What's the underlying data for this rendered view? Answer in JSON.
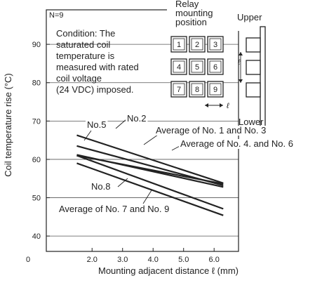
{
  "chart_data": {
    "type": "line",
    "xlabel": "Mounting adjacent distance ℓ (mm)",
    "ylabel": "Coil temperature rise (°C)",
    "xlim": [
      0.5,
      6.8
    ],
    "ylim": [
      36,
      99
    ],
    "xticks": [
      0,
      2.0,
      3.0,
      4.0,
      5.0,
      6.0
    ],
    "xtick_labels": [
      "0",
      "2.0",
      "3.0",
      "4.0",
      "5.0",
      "6.0"
    ],
    "yticks": [
      40,
      50,
      60,
      70,
      80,
      90
    ],
    "ytick_labels": [
      "40",
      "50",
      "60",
      "70",
      "80",
      "90"
    ],
    "grid": true,
    "sample_note": "N=9",
    "condition_lines": [
      "Condition: The",
      "saturated coil",
      "temperature is",
      "measured with rated",
      "coil voltage",
      "(24 VDC) imposed."
    ],
    "series": [
      {
        "name": "No.5",
        "x": [
          1.5,
          6.3
        ],
        "y": [
          66.3,
          53.8
        ]
      },
      {
        "name": "No.2",
        "x": [
          1.5,
          6.3
        ],
        "y": [
          63.5,
          53.2
        ]
      },
      {
        "name": "Average of No. 1 and No. 3",
        "x": [
          1.5,
          6.3
        ],
        "y": [
          61.2,
          52.8
        ]
      },
      {
        "name": "Average of No. 4. and No. 6",
        "x": [
          1.5,
          6.3
        ],
        "y": [
          61.0,
          53.6
        ]
      },
      {
        "name": "No.8",
        "x": [
          1.5,
          6.3
        ],
        "y": [
          61.0,
          47.1
        ]
      },
      {
        "name": "Average of No. 7 and No. 9",
        "x": [
          1.5,
          6.3
        ],
        "y": [
          59.0,
          45.4
        ]
      }
    ],
    "inset": {
      "title_lines": [
        "Relay",
        "mounting",
        "position"
      ],
      "upper_label": "Upper",
      "lower_label": "Lower",
      "grid_numbers": [
        "1",
        "2",
        "3",
        "4",
        "5",
        "6",
        "7",
        "8",
        "9"
      ],
      "dimension_symbol": "ℓ"
    }
  }
}
